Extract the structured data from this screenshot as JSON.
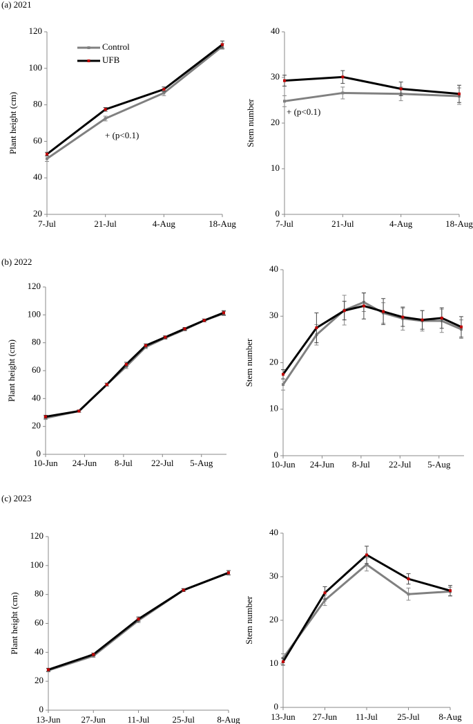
{
  "chart_data": [
    {
      "type": "line",
      "panel": "(a)  2021",
      "y_label": "Plant height (cm)",
      "categories": [
        "7-Jul",
        "21-Jul",
        "4-Aug",
        "18-Aug"
      ],
      "series": [
        {
          "name": "Control",
          "color": "#808080",
          "marker_color": "#808080",
          "values": [
            50.5,
            72.5,
            86.5,
            112
          ],
          "errors": [
            1.5,
            1.3,
            1.5,
            1.5
          ]
        },
        {
          "name": "UFB",
          "color": "#000000",
          "marker_color": "#c00000",
          "values": [
            53,
            77.5,
            88.5,
            113
          ],
          "errors": [
            1,
            1,
            1.3,
            2
          ]
        }
      ],
      "ylim": [
        20,
        120
      ],
      "yticks": [
        20,
        40,
        60,
        80,
        100,
        120
      ],
      "annotation": "+ (p<0.1)",
      "legend": "upper left"
    },
    {
      "type": "line",
      "y_label": "Stem number",
      "categories": [
        "7-Jul",
        "21-Jul",
        "4-Aug",
        "18-Aug"
      ],
      "series": [
        {
          "color": "#808080",
          "marker_color": "#808080",
          "values": [
            24.8,
            26.6,
            26.4,
            25.9
          ],
          "errors": [
            1.2,
            1.3,
            1.5,
            1.8
          ]
        },
        {
          "color": "#000000",
          "marker_color": "#c00000",
          "values": [
            29.3,
            30.1,
            27.5,
            26.4
          ],
          "errors": [
            1.2,
            1.4,
            1.5,
            1.9
          ]
        }
      ],
      "ylim": [
        0,
        40
      ],
      "yticks": [
        0,
        10,
        20,
        30,
        40
      ],
      "annotation": "+ (p<0.1)"
    },
    {
      "type": "line",
      "panel": "(b)  2022",
      "y_label": "Plant height (cm)",
      "x": [
        "10-Jun",
        "22-Jun",
        "2-Jul",
        "9-Jul",
        "16-Jul",
        "23-Jul",
        "30-Jul",
        "6-Aug",
        "13-Aug"
      ],
      "xlim": [
        "10-Jun",
        "14-Aug"
      ],
      "xticks": [
        "10-Jun",
        "24-Jun",
        "8-Jul",
        "22-Jul",
        "5-Aug"
      ],
      "series": [
        {
          "color": "#808080",
          "marker_color": "#808080",
          "values": [
            26,
            31,
            50,
            63,
            77,
            83.5,
            89.5,
            96,
            101
          ],
          "errors": [
            1,
            0.8,
            1,
            1.5,
            1.2,
            1,
            1,
            1,
            1.5
          ]
        },
        {
          "color": "#000000",
          "marker_color": "#c00000",
          "values": [
            27,
            31,
            50,
            64.5,
            78,
            84,
            90,
            96,
            101.5
          ],
          "errors": [
            1,
            0.8,
            1,
            1.5,
            1.2,
            1,
            1,
            1,
            1.5
          ]
        }
      ],
      "ylim": [
        0,
        120
      ],
      "yticks": [
        0,
        20,
        40,
        60,
        80,
        100,
        120
      ]
    },
    {
      "type": "line",
      "y_label": "Stem number",
      "x": [
        "10-Jun",
        "22-Jun",
        "2-Jul",
        "9-Jul",
        "16-Jul",
        "23-Jul",
        "30-Jul",
        "6-Aug",
        "13-Aug"
      ],
      "xlim": [
        "10-Jun",
        "14-Aug"
      ],
      "xticks": [
        "10-Jun",
        "24-Jun",
        "8-Jul",
        "22-Jul",
        "5-Aug"
      ],
      "series": [
        {
          "color": "#808080",
          "marker_color": "#808080",
          "values": [
            15.3,
            26,
            31.3,
            33,
            30.7,
            29.5,
            29,
            29,
            27.2
          ],
          "errors": [
            1.2,
            2.2,
            3.2,
            2,
            2.2,
            2.5,
            2.2,
            2.5,
            2
          ]
        },
        {
          "color": "#000000",
          "marker_color": "#c00000",
          "values": [
            17.5,
            27.5,
            31.2,
            32.2,
            31,
            29.8,
            29.2,
            29.6,
            27.7
          ],
          "errors": [
            1,
            3.2,
            2,
            2.8,
            2.8,
            2,
            2,
            2.2,
            2.2
          ]
        }
      ],
      "ylim": [
        0,
        40
      ],
      "yticks": [
        0,
        10,
        20,
        30,
        40
      ]
    },
    {
      "type": "line",
      "panel": "(c)  2023",
      "y_label": "Plant height (cm)",
      "categories": [
        "13-Jun",
        "27-Jun",
        "11-Jul",
        "25-Jul",
        "8-Aug"
      ],
      "series": [
        {
          "color": "#808080",
          "marker_color": "#808080",
          "values": [
            27.5,
            37.5,
            62,
            83,
            95
          ],
          "errors": [
            1,
            1,
            1.5,
            1,
            1.5
          ]
        },
        {
          "color": "#000000",
          "marker_color": "#c00000",
          "values": [
            28,
            38.5,
            63,
            83,
            95
          ],
          "errors": [
            1,
            1,
            1.5,
            1,
            1.5
          ]
        }
      ],
      "ylim": [
        0,
        120
      ],
      "yticks": [
        0,
        20,
        40,
        60,
        80,
        100,
        120
      ]
    },
    {
      "type": "line",
      "y_label": "Stem number",
      "categories": [
        "13-Jun",
        "27-Jun",
        "11-Jul",
        "25-Jul",
        "8-Aug"
      ],
      "series": [
        {
          "color": "#808080",
          "marker_color": "#808080",
          "values": [
            11.3,
            24.6,
            32.8,
            26,
            26.6
          ],
          "errors": [
            1,
            1.2,
            1.5,
            1.4,
            1
          ]
        },
        {
          "color": "#000000",
          "marker_color": "#c00000",
          "values": [
            10.5,
            26.3,
            35,
            29.5,
            26.8
          ],
          "errors": [
            0.8,
            1.4,
            2,
            1.2,
            1.2
          ]
        }
      ],
      "ylim": [
        0,
        40
      ],
      "yticks": [
        0,
        10,
        20,
        30,
        40
      ]
    }
  ]
}
